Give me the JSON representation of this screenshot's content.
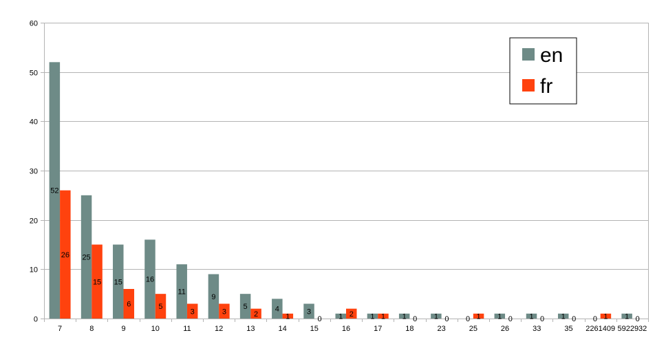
{
  "chart_data": {
    "type": "bar",
    "categories": [
      "7",
      "8",
      "9",
      "10",
      "11",
      "12",
      "13",
      "14",
      "15",
      "16",
      "17",
      "18",
      "23",
      "25",
      "26",
      "33",
      "35",
      "2261409",
      "5922932"
    ],
    "series": [
      {
        "name": "en",
        "color": "#6e8b87",
        "values": [
          52,
          25,
          15,
          16,
          11,
          9,
          5,
          4,
          3,
          1,
          1,
          1,
          1,
          0,
          1,
          1,
          1,
          0,
          1
        ]
      },
      {
        "name": "fr",
        "color": "#ff420e",
        "values": [
          26,
          15,
          6,
          5,
          3,
          3,
          2,
          1,
          0,
          2,
          1,
          0,
          0,
          1,
          0,
          0,
          0,
          1,
          0
        ]
      }
    ],
    "ylim": [
      0,
      60
    ],
    "yticks": [
      0,
      10,
      20,
      30,
      40,
      50,
      60
    ],
    "grid": true,
    "legend_position": "top-right",
    "data_labels": true,
    "title": "",
    "xlabel": "",
    "ylabel": ""
  }
}
